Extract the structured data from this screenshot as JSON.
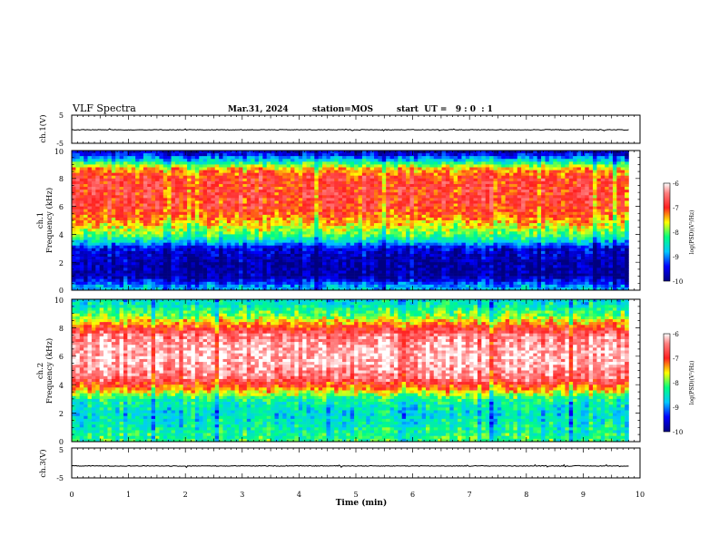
{
  "header": {
    "title": "VLF Spectra",
    "date": "Mar.31, 2024",
    "station": "station=MOS",
    "start_ut": "start  UT =   9 : 0  : 1"
  },
  "colors": {
    "low": "#000080",
    "mid_low": "#00c8ff",
    "mid": "#00ff80",
    "mid_high": "#ffff00",
    "high": "#ff2020",
    "peak": "#ffe8e8"
  },
  "chart_data": [
    {
      "type": "line",
      "panel": "ch1-waveform",
      "ylabel": "ch.1(V)",
      "ylim": [
        -5,
        5
      ],
      "y_ticks": [
        "5",
        "-5"
      ],
      "xlim": [
        0,
        10
      ],
      "series": [
        {
          "x": [
            0,
            9.8
          ],
          "values": [
            -0.2,
            -0.2
          ]
        }
      ]
    },
    {
      "type": "heatmap",
      "panel": "ch1-spectrogram",
      "ylabel": "ch.1\nFrequency (kHz)",
      "ylim": [
        0,
        10
      ],
      "y_ticks": [
        "0",
        "2",
        "4",
        "6",
        "8",
        "10"
      ],
      "xlim": [
        0,
        10
      ],
      "data_end_min": 9.8,
      "frequency_kHz": [
        0.2,
        1,
        2,
        3,
        3.5,
        4,
        5,
        6,
        7,
        8,
        8.7,
        9.3,
        9.8
      ],
      "log_psd": [
        -8.8,
        -9.8,
        -9.8,
        -9.5,
        -8.6,
        -8.0,
        -7.3,
        -6.9,
        -6.9,
        -6.9,
        -7.4,
        -8.6,
        -9.6
      ],
      "colorbar": {
        "label": "log(PSD)(V²/Hz)",
        "range": [
          -10,
          -6
        ],
        "ticks": [
          "-6",
          "-7",
          "-8",
          "-9",
          "-10"
        ]
      }
    },
    {
      "type": "heatmap",
      "panel": "ch2-spectrogram",
      "ylabel": "ch.2\nFrequency (kHz)",
      "ylim": [
        0,
        10
      ],
      "y_ticks": [
        "0",
        "2",
        "4",
        "6",
        "8",
        "10"
      ],
      "xlim": [
        0,
        10
      ],
      "data_end_min": 9.8,
      "frequency_kHz": [
        0.2,
        1,
        2,
        3,
        3.7,
        4.5,
        5.5,
        6.5,
        7.5,
        8.2,
        8.8,
        9.5,
        9.9
      ],
      "log_psd": [
        -8.2,
        -8.4,
        -8.6,
        -8.3,
        -7.3,
        -6.5,
        -6.2,
        -6.2,
        -6.5,
        -7.2,
        -7.9,
        -8.4,
        -8.6
      ],
      "colorbar": {
        "label": "log(PSD)(V²/Hz)",
        "range": [
          -10,
          -6
        ],
        "ticks": [
          "-6",
          "-7",
          "-8",
          "-9",
          "-10"
        ]
      }
    },
    {
      "type": "line",
      "panel": "ch3-waveform",
      "ylabel": "ch.3(V)",
      "ylim": [
        -5,
        5
      ],
      "y_ticks": [
        "5",
        "-5"
      ],
      "xlim": [
        0,
        10
      ],
      "series": [
        {
          "x": [
            0,
            9.8
          ],
          "values": [
            -1,
            -1
          ]
        }
      ]
    }
  ],
  "x_axis": {
    "xlabel": "Time (min)",
    "ticks": [
      "0",
      "1",
      "2",
      "3",
      "4",
      "5",
      "6",
      "7",
      "8",
      "9",
      "10"
    ]
  }
}
